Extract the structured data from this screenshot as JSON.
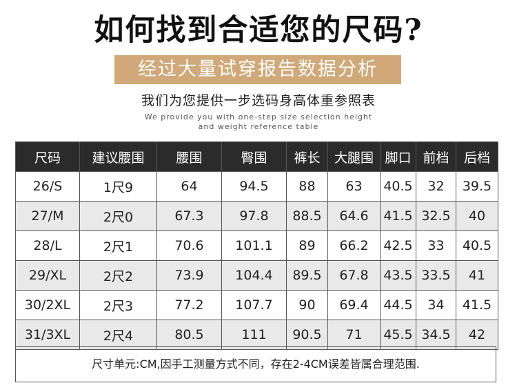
{
  "title": "如何找到合适您的尺码?",
  "banner": "经过大量试穿报告数据分析",
  "subtitle": "我们为您提供一步选码身高体重参照表",
  "english_line1": "We provide you with one-step size selection height",
  "english_line2": "and weight reference table",
  "table": {
    "headers": [
      "尺码",
      "建议腰围",
      "腰围",
      "臀围",
      "裤长",
      "大腿围",
      "脚口",
      "前档",
      "后档"
    ],
    "rows": [
      [
        "26/S",
        "1尺9",
        "64",
        "94.5",
        "88",
        "63",
        "40.5",
        "32",
        "39.5"
      ],
      [
        "27/M",
        "2尺0",
        "67.3",
        "97.8",
        "88.5",
        "64.6",
        "41.5",
        "32.5",
        "40"
      ],
      [
        "28/L",
        "2尺1",
        "70.6",
        "101.1",
        "89",
        "66.2",
        "42.5",
        "33",
        "40.5"
      ],
      [
        "29/XL",
        "2尺2",
        "73.9",
        "104.4",
        "89.5",
        "67.8",
        "43.5",
        "33.5",
        "41"
      ],
      [
        "30/2XL",
        "2尺3",
        "77.2",
        "107.7",
        "90",
        "69.4",
        "44.5",
        "34",
        "41.5"
      ],
      [
        "31/3XL",
        "2尺4",
        "80.5",
        "111",
        "90.5",
        "71",
        "45.5",
        "34.5",
        "42"
      ]
    ]
  },
  "footer_note": "尺寸单元:CM,因手工测量方式不同，存在2-4CM误差皆属合理范围.",
  "colors": {
    "banner": "#d1a877",
    "header_bg": "#2b2b2b",
    "shade_row": "#e9e9e9"
  }
}
